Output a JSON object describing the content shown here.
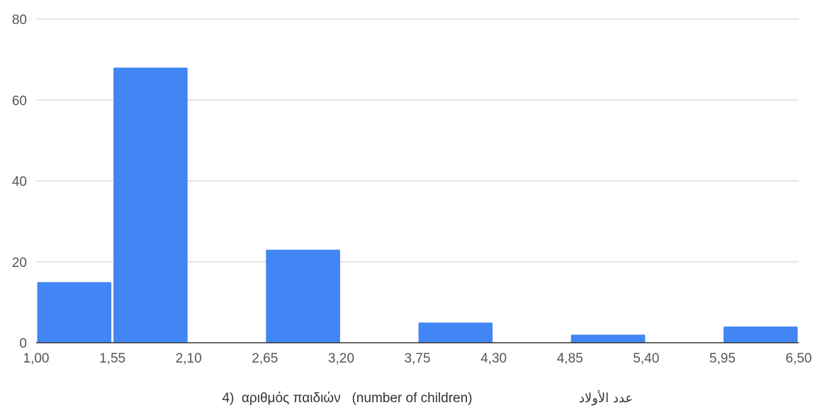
{
  "chart_data": {
    "type": "bar",
    "title": "",
    "xlabel": "4)  αριθμός παιδιών   (number of children)",
    "xlabel_secondary": "عدد الأولاد",
    "ylabel": "",
    "ylim": [
      0,
      80
    ],
    "y_ticks": [
      "0",
      "20",
      "40",
      "60",
      "80"
    ],
    "x_range": [
      1.0,
      6.5
    ],
    "x_ticks": [
      "1,00",
      "1,55",
      "2,10",
      "2,65",
      "3,20",
      "3,75",
      "4,30",
      "4,85",
      "5,40",
      "5,95",
      "6,50"
    ],
    "bins": [
      {
        "from": 1.0,
        "to": 1.55,
        "value": 15
      },
      {
        "from": 1.55,
        "to": 2.1,
        "value": 68
      },
      {
        "from": 2.65,
        "to": 3.2,
        "value": 23
      },
      {
        "from": 3.75,
        "to": 4.3,
        "value": 5
      },
      {
        "from": 4.85,
        "to": 5.4,
        "value": 2
      },
      {
        "from": 5.95,
        "to": 6.5,
        "value": 4
      }
    ],
    "bar_color": "#4285f4",
    "grid_color": "#cccccc",
    "grid": true,
    "legend": "none"
  }
}
